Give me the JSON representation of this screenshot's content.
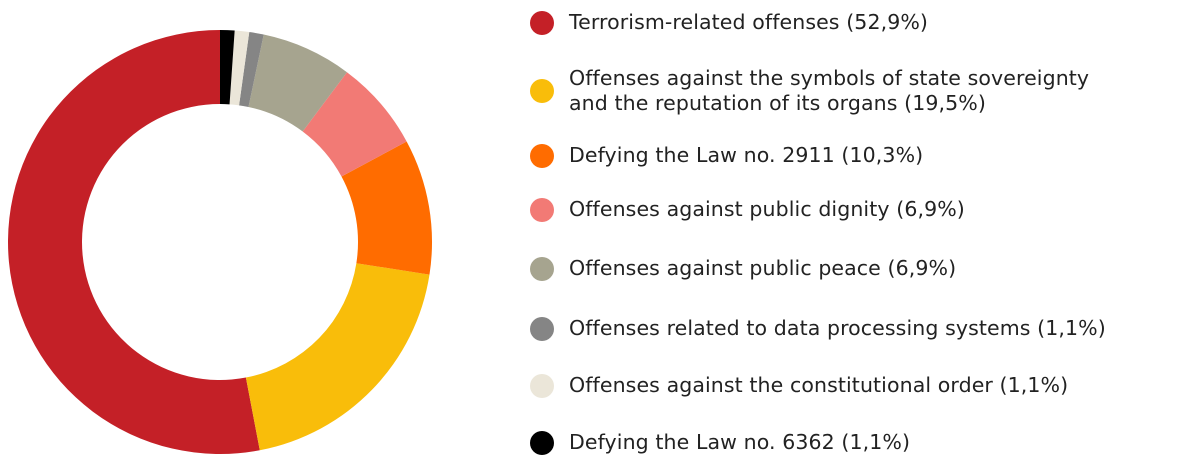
{
  "chart_data": {
    "type": "pie",
    "donut": true,
    "slices": [
      {
        "label": "Terrorism-related offenses (52,9%)",
        "value": 52.9,
        "color": "#c42027"
      },
      {
        "label": "Offenses against the symbols of state sovereignty\nand the reputation of its organs (19,5%)",
        "value": 19.5,
        "color": "#f9bd0a"
      },
      {
        "label": "Defying the Law no. 2911 (10,3%)",
        "value": 10.3,
        "color": "#ff6c00"
      },
      {
        "label": "Offenses against public dignity (6,9%)",
        "value": 6.9,
        "color": "#f27a75"
      },
      {
        "label": "Offenses against public peace (6,9%)",
        "value": 6.9,
        "color": "#a6a48f"
      },
      {
        "label": "Offenses related to data processing systems (1,1%)",
        "value": 1.1,
        "color": "#858585"
      },
      {
        "label": "Offenses against the constitutional order (1,1%)",
        "value": 1.1,
        "color": "#ebe6d9"
      },
      {
        "label": "Defying the Law no. 6362 (1,1%)",
        "value": 1.1,
        "color": "#000000"
      }
    ],
    "legend": "right"
  }
}
